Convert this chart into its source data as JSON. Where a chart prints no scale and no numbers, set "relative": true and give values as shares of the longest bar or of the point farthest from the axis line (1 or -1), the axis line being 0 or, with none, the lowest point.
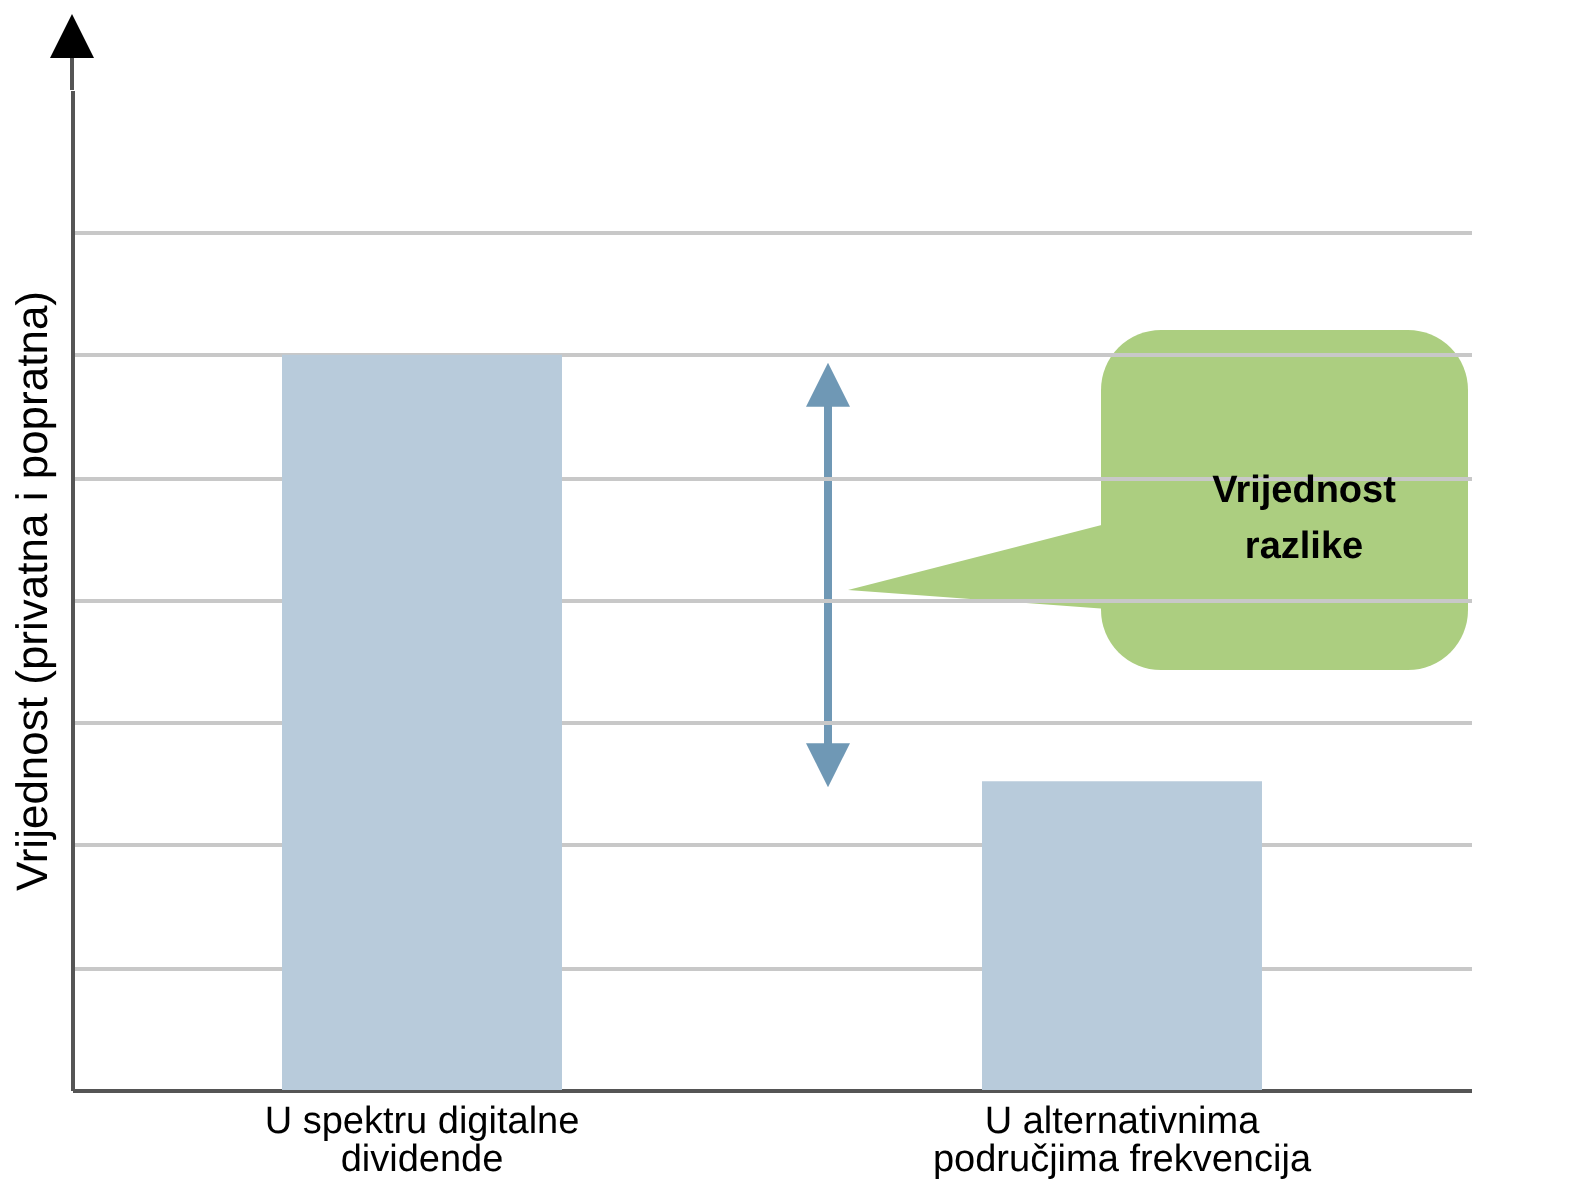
{
  "chart_data": {
    "type": "bar",
    "relative": true,
    "ylabel": "Vrijednost (privatna i popratna)",
    "categories": [
      "U spektru digitalne dividende",
      "U alternativnima područjima frekvencija"
    ],
    "values": [
      1,
      0.42
    ],
    "color": "#b8cbdb",
    "grid": "y",
    "annotations": [
      "Vrijednost razlike"
    ]
  }
}
